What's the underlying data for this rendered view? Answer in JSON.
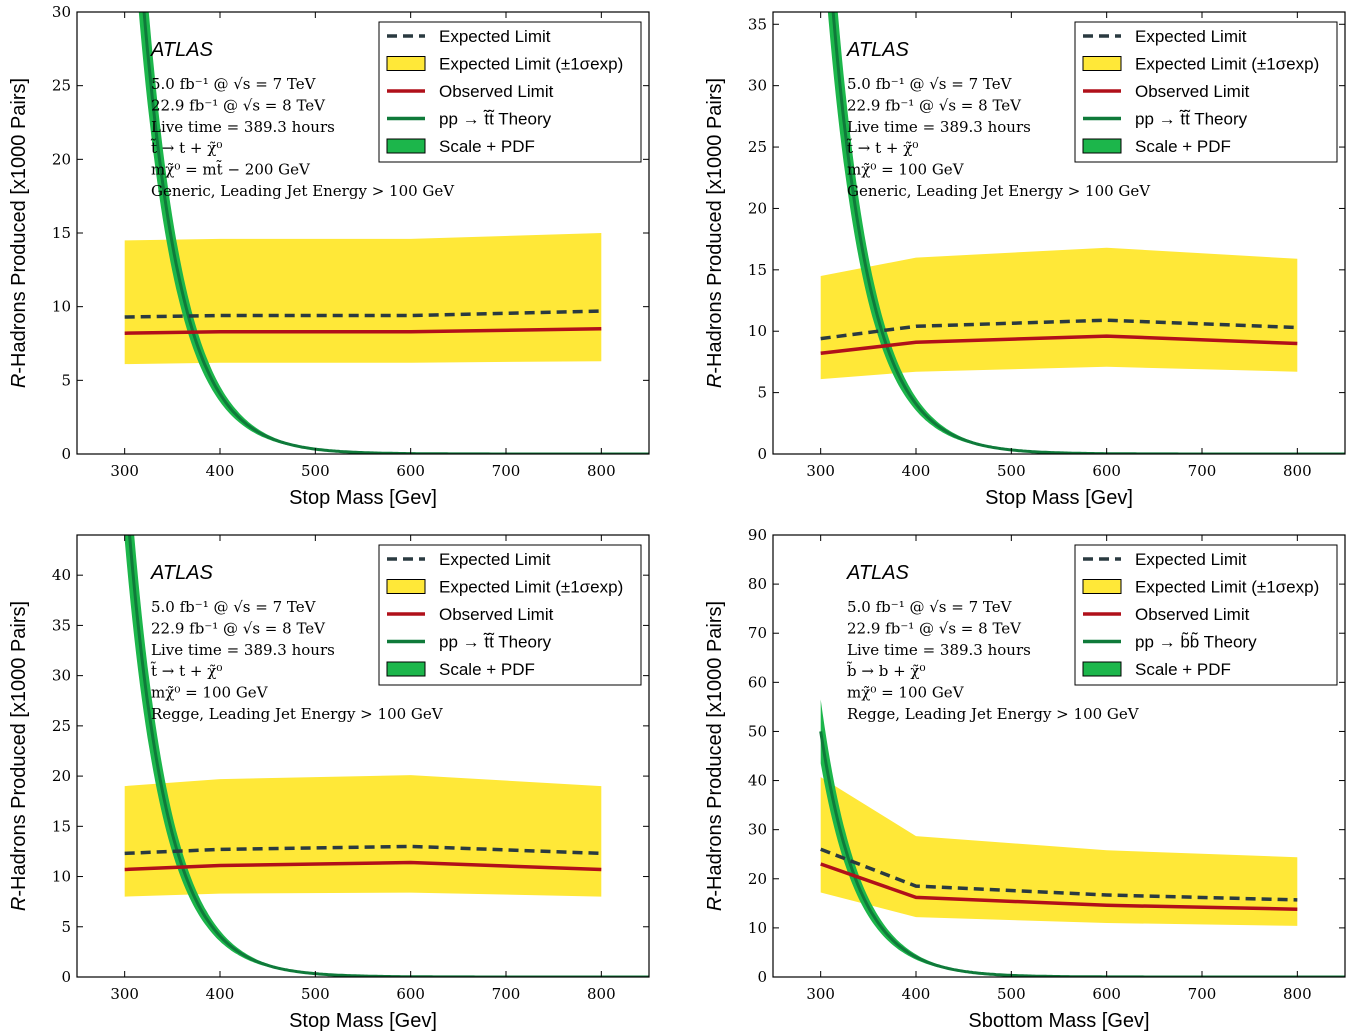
{
  "colors": {
    "band_yellow": "#ffe838",
    "expected_dashed": "#2a3a40",
    "observed_red": "#b0101a",
    "theory_line": "#0f7a3a",
    "theory_band": "#1cb64b"
  },
  "chart_data": [
    {
      "type": "line",
      "experiment": "ATLAS",
      "xlabel": "Stop Mass [Gev]",
      "ylabel": "R-Hadrons Produced [x1000 Pairs]",
      "xlim": [
        250,
        850
      ],
      "ylim": [
        0,
        30
      ],
      "xticks": [
        300,
        400,
        500,
        600,
        700,
        800
      ],
      "yticks": [
        0,
        5,
        10,
        15,
        20,
        25,
        30
      ],
      "legend": {
        "position": "top-right",
        "entries": [
          "Expected Limit",
          "Expected Limit (±1σexp)",
          "Observed Limit",
          "pp → t̃t̃ Theory",
          "Scale + PDF"
        ]
      },
      "annotations": [
        "5.0 fb⁻¹ @ √s = 7 TeV",
        "22.9 fb⁻¹ @ √s = 8 TeV",
        "Live time = 389.3 hours",
        "t̃ → t + χ̃⁰",
        "mχ̃⁰ = mt̃ − 200 GeV",
        "Generic, Leading Jet Energy > 100 GeV"
      ],
      "x": [
        300,
        400,
        600,
        800
      ],
      "expected": [
        9.3,
        9.4,
        9.4,
        9.7
      ],
      "band_lo": [
        6.1,
        6.2,
        6.2,
        6.3
      ],
      "band_hi": [
        14.5,
        14.6,
        14.6,
        15.0
      ],
      "observed": [
        8.2,
        8.3,
        8.3,
        8.5
      ],
      "theory": {
        "x0": 300,
        "y0": 50,
        "decay": 0.02508,
        "rel_width": 0.13
      }
    },
    {
      "type": "line",
      "experiment": "ATLAS",
      "xlabel": "Stop Mass [Gev]",
      "ylabel": "R-Hadrons Produced [x1000 Pairs]",
      "xlim": [
        250,
        850
      ],
      "ylim": [
        0,
        36
      ],
      "xticks": [
        300,
        400,
        500,
        600,
        700,
        800
      ],
      "yticks": [
        0,
        5,
        10,
        15,
        20,
        25,
        30,
        35
      ],
      "legend": {
        "position": "top-right",
        "entries": [
          "Expected Limit",
          "Expected Limit (±1σexp)",
          "Observed Limit",
          "pp → t̃t̃ Theory",
          "Scale + PDF"
        ]
      },
      "annotations": [
        "5.0 fb⁻¹ @ √s = 7 TeV",
        "22.9 fb⁻¹ @ √s = 8 TeV",
        "Live time = 389.3 hours",
        "t̃ → t + χ̃⁰",
        "mχ̃⁰ = 100 GeV",
        "Generic, Leading Jet Energy > 100 GeV"
      ],
      "x": [
        300,
        400,
        600,
        800
      ],
      "expected": [
        9.4,
        10.4,
        10.9,
        10.3
      ],
      "band_lo": [
        6.1,
        6.7,
        7.1,
        6.7
      ],
      "band_hi": [
        14.5,
        16.0,
        16.8,
        15.9
      ],
      "observed": [
        8.2,
        9.1,
        9.6,
        9.0
      ],
      "theory": {
        "x0": 300,
        "y0": 50,
        "decay": 0.02508,
        "rel_width": 0.13
      }
    },
    {
      "type": "line",
      "experiment": "ATLAS",
      "xlabel": "Stop Mass [Gev]",
      "ylabel": "R-Hadrons Produced [x1000 Pairs]",
      "xlim": [
        250,
        850
      ],
      "ylim": [
        0,
        44
      ],
      "xticks": [
        300,
        400,
        500,
        600,
        700,
        800
      ],
      "yticks": [
        0,
        5,
        10,
        15,
        20,
        25,
        30,
        35,
        40
      ],
      "legend": {
        "position": "top-right",
        "entries": [
          "Expected Limit",
          "Expected Limit (±1σexp)",
          "Observed Limit",
          "pp → t̃t̃ Theory",
          "Scale + PDF"
        ]
      },
      "annotations": [
        "5.0 fb⁻¹ @ √s = 7 TeV",
        "22.9 fb⁻¹ @ √s = 8 TeV",
        "Live time = 389.3 hours",
        "t̃ → t + χ̃⁰",
        "mχ̃⁰ = 100 GeV",
        "Regge, Leading Jet Energy > 100 GeV"
      ],
      "x": [
        300,
        400,
        600,
        800
      ],
      "expected": [
        12.3,
        12.7,
        13.0,
        12.3
      ],
      "band_lo": [
        8.0,
        8.3,
        8.4,
        8.0
      ],
      "band_hi": [
        19.0,
        19.7,
        20.1,
        19.0
      ],
      "observed": [
        10.7,
        11.1,
        11.4,
        10.7
      ],
      "theory": {
        "x0": 300,
        "y0": 50,
        "decay": 0.02508,
        "rel_width": 0.13
      }
    },
    {
      "type": "line",
      "experiment": "ATLAS",
      "xlabel": "Sbottom Mass [Gev]",
      "ylabel": "R-Hadrons Produced [x1000 Pairs]",
      "xlim": [
        250,
        850
      ],
      "ylim": [
        0,
        90
      ],
      "xticks": [
        300,
        400,
        500,
        600,
        700,
        800
      ],
      "yticks": [
        0,
        10,
        20,
        30,
        40,
        50,
        60,
        70,
        80,
        90
      ],
      "legend": {
        "position": "top-right",
        "entries": [
          "Expected Limit",
          "Expected Limit (±1σexp)",
          "Observed Limit",
          "pp → b̃b̃ Theory",
          "Scale + PDF"
        ]
      },
      "annotations": [
        "5.0 fb⁻¹ @ √s = 7 TeV",
        "22.9 fb⁻¹ @ √s = 8 TeV",
        "Live time = 389.3 hours",
        "b̃ → b + χ̃⁰",
        "mχ̃⁰ = 100 GeV",
        "Regge, Leading Jet Energy > 100 GeV"
      ],
      "x": [
        300,
        400,
        600,
        800
      ],
      "expected": [
        26.0,
        18.5,
        16.7,
        15.7
      ],
      "band_lo": [
        17.2,
        12.2,
        11.0,
        10.4
      ],
      "band_hi": [
        40.7,
        28.7,
        25.8,
        24.4
      ],
      "observed": [
        23.0,
        16.2,
        14.6,
        13.8
      ],
      "theory": {
        "x0": 300,
        "y0": 50,
        "decay": 0.02508,
        "rel_width": 0.13
      }
    }
  ]
}
